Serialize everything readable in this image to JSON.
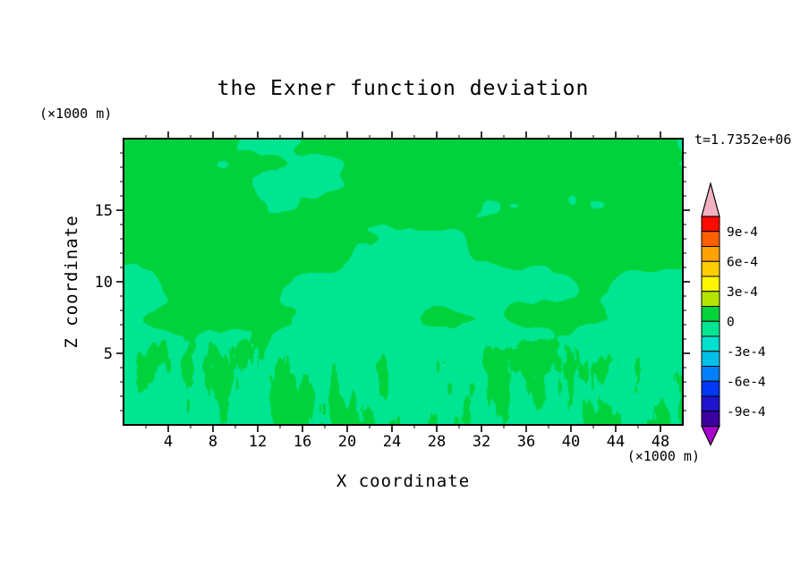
{
  "page": {
    "background": "#ffffff"
  },
  "chart_data": {
    "type": "filled_contour",
    "title": "the Exner function deviation",
    "time_label": "t=1.7352e+06",
    "xlabel": "X coordinate",
    "x_unit": "(×1000 m)",
    "ylabel": "Z coordinate",
    "y_unit": "(×1000 m)",
    "xlim": [
      0,
      50
    ],
    "ylim": [
      0,
      20
    ],
    "x_ticks": [
      4,
      8,
      12,
      16,
      20,
      24,
      28,
      32,
      36,
      40,
      44,
      48
    ],
    "x_minor_step": 2,
    "y_ticks": [
      5,
      10,
      15
    ],
    "y_minor_step": 1,
    "grid": false,
    "legend_position": "right-colorbar",
    "contour_interval": 0.00015,
    "colorbar": {
      "labels_top_to_bottom": [
        "9e-4",
        "6e-4",
        "3e-4",
        "0",
        "-3e-4",
        "-6e-4",
        "-9e-4"
      ],
      "boundaries_top_to_bottom": [
        0.00105,
        0.0009,
        0.00075,
        0.0006,
        0.00045,
        0.0003,
        0.00015,
        0,
        -0.00015,
        -0.0003,
        -0.00045,
        -0.0006,
        -0.00075,
        -0.0009,
        -0.00105
      ],
      "segment_colors_top_to_bottom": [
        "#ff0a00",
        "#ff5f00",
        "#ffa300",
        "#ffcd00",
        "#fff600",
        "#b4e400",
        "#00d23c",
        "#00e591",
        "#00e0cf",
        "#00bfe8",
        "#0080ff",
        "#0039f5",
        "#1e14cd",
        "#3c00a0"
      ],
      "over_arrow_color": "#f2b1c0",
      "under_arrow_color": "#aa00cc"
    },
    "field": {
      "background_value_range": "-1.5e-4 to 0",
      "background_color": "#00e591",
      "patch_value_range": "0 to 1.5e-4",
      "patch_color": "#00d23c",
      "description": "Near-zero Exner function deviation: seafoam-green background (-1.5e-4..0) with irregular green patches (0..1.5e-4) - a broad patchy region above z~10, a thin wavy band near z~7.5, and fine vertical grass-like streaks below z~5"
    }
  }
}
